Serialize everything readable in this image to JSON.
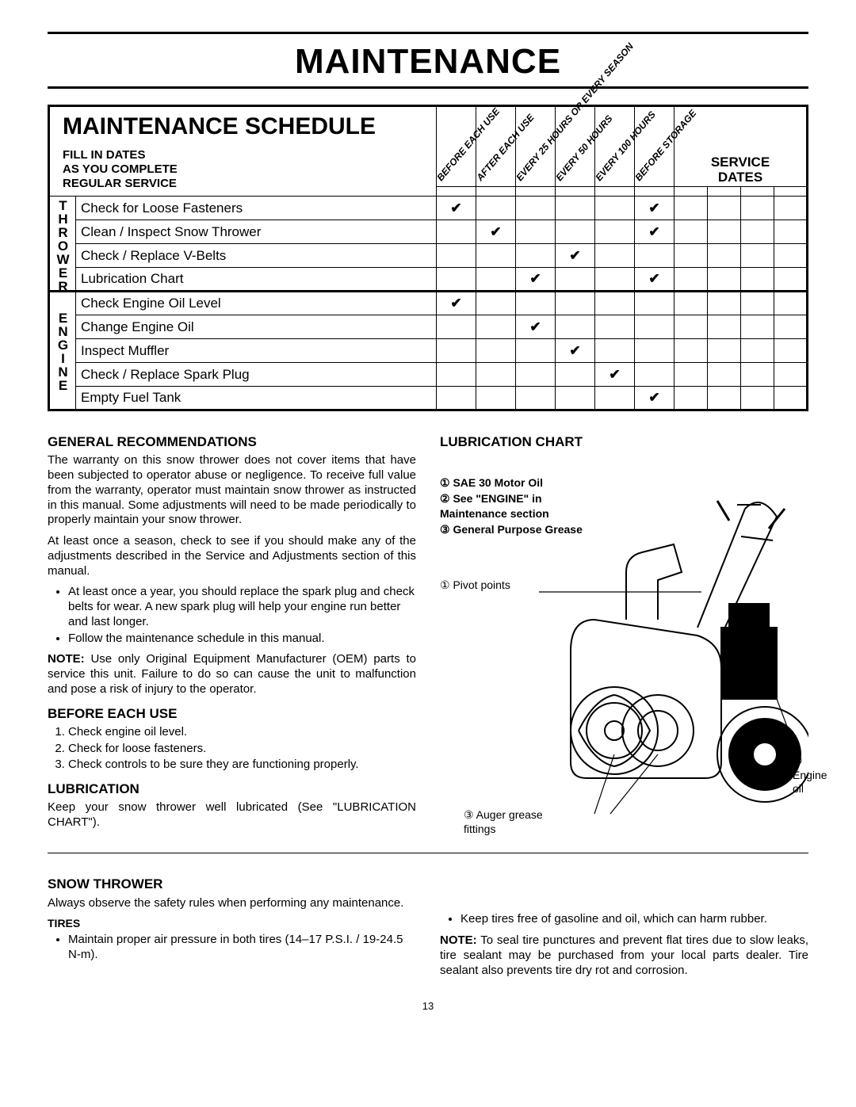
{
  "page_title": "MAINTENANCE",
  "schedule": {
    "title": "MAINTENANCE SCHEDULE",
    "fillin": "FILL IN DATES\nAS YOU COMPLETE\nREGULAR SERVICE",
    "intervals": [
      "BEFORE EACH USE",
      "AFTER EACH USE",
      "EVERY 25 HOURS OR EVERY SEASON",
      "EVERY 50 HOURS",
      "EVERY 100 HOURS",
      "BEFORE STORAGE"
    ],
    "service_dates": "SERVICE\nDATES",
    "groups": [
      {
        "label": "THROWER",
        "tasks": [
          {
            "name": "Check for Loose Fasteners",
            "checks": [
              true,
              false,
              false,
              false,
              false,
              true
            ]
          },
          {
            "name": "Clean / Inspect Snow Thrower",
            "checks": [
              false,
              true,
              false,
              false,
              false,
              true
            ]
          },
          {
            "name": "Check / Replace V-Belts",
            "checks": [
              false,
              false,
              false,
              true,
              false,
              false
            ]
          },
          {
            "name": "Lubrication Chart",
            "checks": [
              false,
              false,
              true,
              false,
              false,
              true
            ]
          }
        ]
      },
      {
        "label": "ENGINE",
        "tasks": [
          {
            "name": "Check Engine Oil Level",
            "checks": [
              true,
              false,
              false,
              false,
              false,
              false
            ]
          },
          {
            "name": "Change Engine Oil",
            "checks": [
              false,
              false,
              true,
              false,
              false,
              false
            ]
          },
          {
            "name": "Inspect Muffler",
            "checks": [
              false,
              false,
              false,
              true,
              false,
              false
            ]
          },
          {
            "name": "Check / Replace Spark Plug",
            "checks": [
              false,
              false,
              false,
              false,
              true,
              false
            ]
          },
          {
            "name": "Empty Fuel Tank",
            "checks": [
              false,
              false,
              false,
              false,
              false,
              true
            ]
          }
        ]
      }
    ]
  },
  "sections": {
    "gen_rec": {
      "heading": "GENERAL RECOMMENDATIONS",
      "p1": "The warranty on this snow thrower does not cover items that have been subjected to operator abuse or negligence. To receive full value from the warranty, operator must maintain snow thrower as instructed in this manual. Some adjustments will need to be made periodically to properly maintain your snow thrower.",
      "p2": "At least once a season, check to see if you should make any of the adjustments described in the Service and Adjustments section of this manual.",
      "b1": "At least once a year, you should replace the spark plug and check belts for wear. A new spark plug will help your engine run better and last longer.",
      "b2": "Follow the maintenance schedule in this manual.",
      "note_label": "NOTE:",
      "note": " Use only Original Equipment Manufacturer (OEM) parts to service this unit. Failure to do so can cause the unit to malfunction and pose a risk of injury to the operator."
    },
    "before": {
      "heading": "BEFORE EACH USE",
      "i1": "Check engine oil level.",
      "i2": "Check for loose fasteners.",
      "i3": "Check controls to be sure they are functioning properly."
    },
    "lubrication": {
      "heading": "LUBRICATION",
      "p": "Keep your snow thrower well lubricated (See \"LUBRICATION CHART\")."
    },
    "lub_chart": {
      "heading": "LUBRICATION CHART",
      "legend1": "① SAE 30 Motor Oil",
      "legend2": "② See \"ENGINE\" in Maintenance section",
      "legend3": "③ General Purpose Grease",
      "label_pivot": "① Pivot points",
      "label_engine": "② Engine oil",
      "label_auger": "③ Auger grease fittings"
    },
    "snow_thrower": {
      "heading": "SNOW THROWER",
      "p": "Always observe the safety rules when performing any maintenance.",
      "tires_h": "TIRES",
      "b1": "Maintain proper air pressure in both tires (14–17 P.S.I. / 19-24.5 N-m).",
      "b2": "Keep tires free of gasoline and oil, which can harm rubber.",
      "note_label": "NOTE:",
      "note": " To seal tire punctures and prevent flat tires due to slow leaks, tire sealant may be purchased from your local parts dealer. Tire sealant also prevents tire dry rot and corrosion."
    }
  },
  "page_number": "13"
}
